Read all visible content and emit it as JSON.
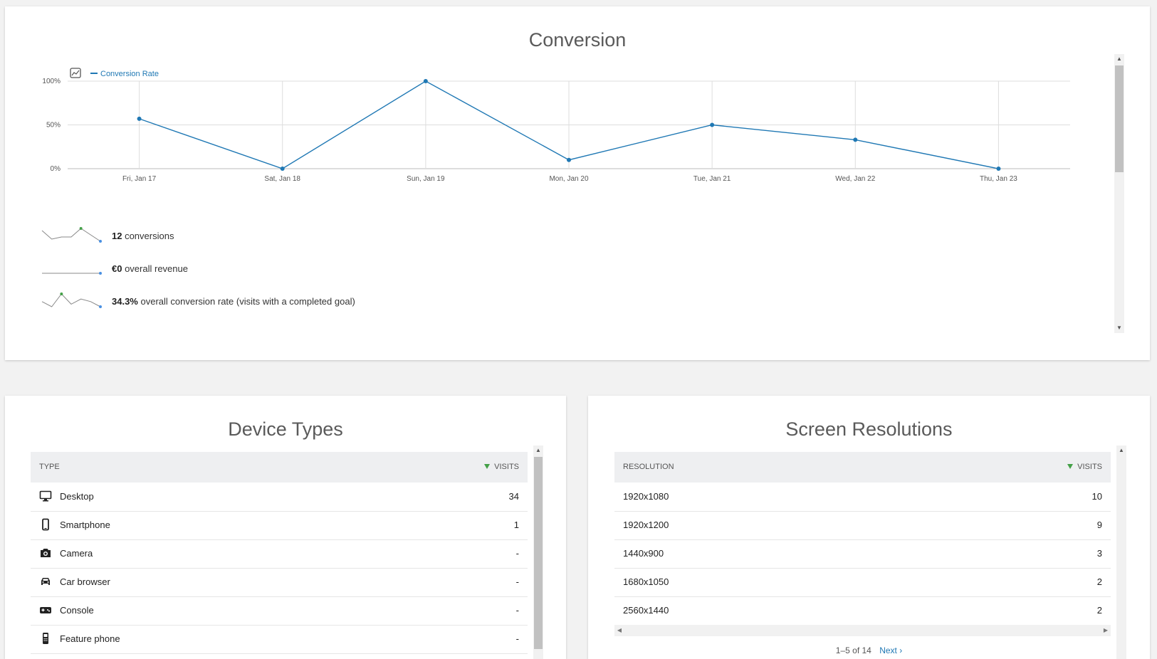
{
  "conversion": {
    "title": "Conversion",
    "legend": "Conversion Rate",
    "chart_data": {
      "type": "line",
      "categories": [
        "Fri, Jan 17",
        "Sat, Jan 18",
        "Sun, Jan 19",
        "Mon, Jan 20",
        "Tue, Jan 21",
        "Wed, Jan 22",
        "Thu, Jan 23"
      ],
      "series": [
        {
          "name": "Conversion Rate",
          "values": [
            57,
            0,
            100,
            10,
            50,
            33,
            0
          ]
        }
      ],
      "yticks": [
        "0%",
        "50%",
        "100%"
      ],
      "ylim": [
        0,
        100
      ],
      "grid": true,
      "legend": "top-left",
      "color": "#1f78b4"
    },
    "sparklines": [
      {
        "value": "12",
        "text": " conversions",
        "points": [
          5,
          1,
          2,
          2,
          6,
          3,
          0
        ]
      },
      {
        "value": "€0",
        "text": " overall revenue",
        "points": [
          0,
          0,
          0,
          0,
          0,
          0,
          0
        ]
      },
      {
        "value": "34.3%",
        "text": " overall conversion rate (visits with a completed goal)",
        "points": [
          3,
          1,
          6,
          2,
          4,
          3,
          1
        ]
      }
    ]
  },
  "device_types": {
    "title": "Device Types",
    "col_type": "TYPE",
    "col_visits": "VISITS",
    "rows": [
      {
        "icon": "desktop-icon",
        "label": "Desktop",
        "visits": "34"
      },
      {
        "icon": "smartphone-icon",
        "label": "Smartphone",
        "visits": "1"
      },
      {
        "icon": "camera-icon",
        "label": "Camera",
        "visits": "-"
      },
      {
        "icon": "car-icon",
        "label": "Car browser",
        "visits": "-"
      },
      {
        "icon": "console-icon",
        "label": "Console",
        "visits": "-"
      },
      {
        "icon": "feature-phone-icon",
        "label": "Feature phone",
        "visits": "-"
      }
    ]
  },
  "screen_resolutions": {
    "title": "Screen Resolutions",
    "col_res": "RESOLUTION",
    "col_visits": "VISITS",
    "rows": [
      {
        "label": "1920x1080",
        "visits": "10"
      },
      {
        "label": "1920x1200",
        "visits": "9"
      },
      {
        "label": "1440x900",
        "visits": "3"
      },
      {
        "label": "1680x1050",
        "visits": "2"
      },
      {
        "label": "2560x1440",
        "visits": "2"
      }
    ],
    "pagination": "1–5 of 14",
    "next_label": "Next ›"
  },
  "colors": {
    "accent": "#1f78b4",
    "sort_arrow": "#43a047",
    "spark_max": "#43a047",
    "spark_last": "#4a90e2"
  }
}
